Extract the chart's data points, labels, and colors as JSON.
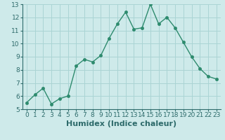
{
  "x": [
    0,
    1,
    2,
    3,
    4,
    5,
    6,
    7,
    8,
    9,
    10,
    11,
    12,
    13,
    14,
    15,
    16,
    17,
    18,
    19,
    20,
    21,
    22,
    23
  ],
  "y": [
    5.5,
    6.1,
    6.6,
    5.4,
    5.8,
    6.0,
    8.3,
    8.8,
    8.6,
    9.1,
    10.4,
    11.5,
    12.4,
    11.1,
    11.2,
    13.0,
    11.5,
    12.0,
    11.2,
    10.1,
    9.0,
    8.1,
    7.5,
    7.3
  ],
  "line_color": "#2e8b6e",
  "marker": "o",
  "marker_color": "#2e8b6e",
  "bg_color": "#ceeaea",
  "grid_color": "#aad4d4",
  "xlabel": "Humidex (Indice chaleur)",
  "xlabel_fontsize": 8,
  "ylim": [
    5,
    13
  ],
  "xlim": [
    -0.5,
    23.5
  ],
  "yticks": [
    5,
    6,
    7,
    8,
    9,
    10,
    11,
    12,
    13
  ],
  "xticks": [
    0,
    1,
    2,
    3,
    4,
    5,
    6,
    7,
    8,
    9,
    10,
    11,
    12,
    13,
    14,
    15,
    16,
    17,
    18,
    19,
    20,
    21,
    22,
    23
  ],
  "tick_fontsize": 6.5,
  "line_width": 1.0,
  "marker_size": 3.0
}
